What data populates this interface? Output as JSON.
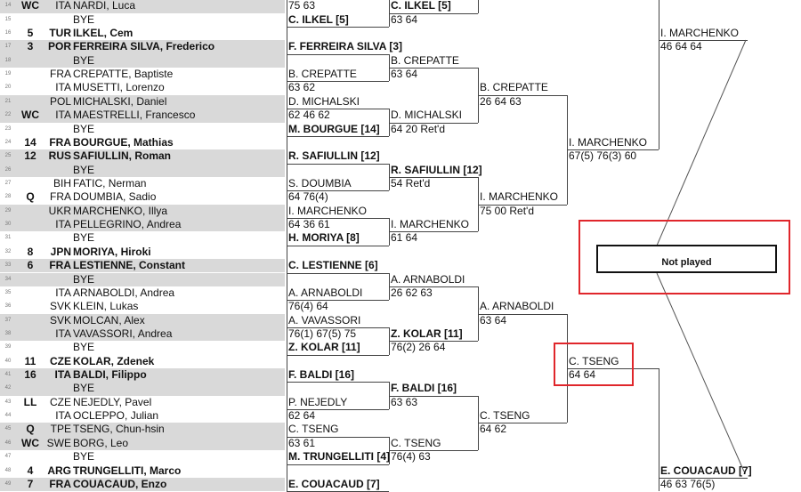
{
  "draw": [
    {
      "no": "14",
      "seed": "WC",
      "country": "ITA",
      "name": "NARDI, Luca",
      "bold": false
    },
    {
      "no": "15",
      "seed": "",
      "country": "",
      "name": "BYE",
      "bold": false
    },
    {
      "no": "16",
      "seed": "5",
      "country": "TUR",
      "name": "ILKEL, Cem",
      "bold": true
    },
    {
      "no": "17",
      "seed": "3",
      "country": "POR",
      "name": "FERREIRA SILVA, Frederico",
      "bold": true
    },
    {
      "no": "18",
      "seed": "",
      "country": "",
      "name": "BYE",
      "bold": false
    },
    {
      "no": "19",
      "seed": "",
      "country": "FRA",
      "name": "CREPATTE, Baptiste",
      "bold": false
    },
    {
      "no": "20",
      "seed": "",
      "country": "ITA",
      "name": "MUSETTI, Lorenzo",
      "bold": false
    },
    {
      "no": "21",
      "seed": "",
      "country": "POL",
      "name": "MICHALSKI, Daniel",
      "bold": false
    },
    {
      "no": "22",
      "seed": "WC",
      "country": "ITA",
      "name": "MAESTRELLI, Francesco",
      "bold": false
    },
    {
      "no": "23",
      "seed": "",
      "country": "",
      "name": "BYE",
      "bold": false
    },
    {
      "no": "24",
      "seed": "14",
      "country": "FRA",
      "name": "BOURGUE, Mathias",
      "bold": true
    },
    {
      "no": "25",
      "seed": "12",
      "country": "RUS",
      "name": "SAFIULLIN, Roman",
      "bold": true
    },
    {
      "no": "26",
      "seed": "",
      "country": "",
      "name": "BYE",
      "bold": false
    },
    {
      "no": "27",
      "seed": "",
      "country": "BIH",
      "name": "FATIC, Nerman",
      "bold": false
    },
    {
      "no": "28",
      "seed": "Q",
      "country": "FRA",
      "name": "DOUMBIA, Sadio",
      "bold": false
    },
    {
      "no": "29",
      "seed": "",
      "country": "UKR",
      "name": "MARCHENKO, Illya",
      "bold": false
    },
    {
      "no": "30",
      "seed": "",
      "country": "ITA",
      "name": "PELLEGRINO, Andrea",
      "bold": false
    },
    {
      "no": "31",
      "seed": "",
      "country": "",
      "name": "BYE",
      "bold": false
    },
    {
      "no": "32",
      "seed": "8",
      "country": "JPN",
      "name": "MORIYA, Hiroki",
      "bold": true
    },
    {
      "no": "33",
      "seed": "6",
      "country": "FRA",
      "name": "LESTIENNE, Constant",
      "bold": true
    },
    {
      "no": "34",
      "seed": "",
      "country": "",
      "name": "BYE",
      "bold": false
    },
    {
      "no": "35",
      "seed": "",
      "country": "ITA",
      "name": "ARNABOLDI, Andrea",
      "bold": false
    },
    {
      "no": "36",
      "seed": "",
      "country": "SVK",
      "name": "KLEIN, Lukas",
      "bold": false
    },
    {
      "no": "37",
      "seed": "",
      "country": "SVK",
      "name": "MOLCAN, Alex",
      "bold": false
    },
    {
      "no": "38",
      "seed": "",
      "country": "ITA",
      "name": "VAVASSORI, Andrea",
      "bold": false
    },
    {
      "no": "39",
      "seed": "",
      "country": "",
      "name": "BYE",
      "bold": false
    },
    {
      "no": "40",
      "seed": "11",
      "country": "CZE",
      "name": "KOLAR, Zdenek",
      "bold": true
    },
    {
      "no": "41",
      "seed": "16",
      "country": "ITA",
      "name": "BALDI, Filippo",
      "bold": true
    },
    {
      "no": "42",
      "seed": "",
      "country": "",
      "name": "BYE",
      "bold": false
    },
    {
      "no": "43",
      "seed": "LL",
      "country": "CZE",
      "name": "NEJEDLY, Pavel",
      "bold": false
    },
    {
      "no": "44",
      "seed": "",
      "country": "ITA",
      "name": "OCLEPPO, Julian",
      "bold": false
    },
    {
      "no": "45",
      "seed": "Q",
      "country": "TPE",
      "name": "TSENG, Chun-hsin",
      "bold": false
    },
    {
      "no": "46",
      "seed": "WC",
      "country": "SWE",
      "name": "BORG, Leo",
      "bold": false
    },
    {
      "no": "47",
      "seed": "",
      "country": "",
      "name": "BYE",
      "bold": false
    },
    {
      "no": "48",
      "seed": "4",
      "country": "ARG",
      "name": "TRUNGELLITI, Marco",
      "bold": true
    },
    {
      "no": "49",
      "seed": "7",
      "country": "FRA",
      "name": "COUACAUD, Enzo",
      "bold": true
    }
  ],
  "rounds": [
    {
      "results": [
        {
          "winner": "",
          "score": "75 63",
          "bold": false
        },
        {
          "winner": "C. ILKEL [5]",
          "score": "",
          "bold": true
        },
        {
          "winner": "F. FERREIRA SILVA [3]",
          "score": "",
          "bold": true
        },
        {
          "winner": "B. CREPATTE",
          "score": "63 62",
          "bold": false
        },
        {
          "winner": "D. MICHALSKI",
          "score": "62 46 62",
          "bold": false
        },
        {
          "winner": "M. BOURGUE [14]",
          "score": "",
          "bold": true
        },
        {
          "winner": "R. SAFIULLIN [12]",
          "score": "",
          "bold": true
        },
        {
          "winner": "S. DOUMBIA",
          "score": "64 76(4)",
          "bold": false
        },
        {
          "winner": "I. MARCHENKO",
          "score": "64 36 61",
          "bold": false
        },
        {
          "winner": "H. MORIYA [8]",
          "score": "",
          "bold": true
        },
        {
          "winner": "C. LESTIENNE [6]",
          "score": "",
          "bold": true
        },
        {
          "winner": "A. ARNABOLDI",
          "score": "76(4) 64",
          "bold": false
        },
        {
          "winner": "A. VAVASSORI",
          "score": "76(1) 67(5) 75",
          "bold": false
        },
        {
          "winner": "Z. KOLAR [11]",
          "score": "",
          "bold": true
        },
        {
          "winner": "F. BALDI [16]",
          "score": "",
          "bold": true
        },
        {
          "winner": "P. NEJEDLY",
          "score": "62 64",
          "bold": false
        },
        {
          "winner": "C. TSENG",
          "score": "63 61",
          "bold": false
        },
        {
          "winner": "M. TRUNGELLITI [4]",
          "score": "",
          "bold": true
        },
        {
          "winner": "E. COUACAUD [7]",
          "score": "",
          "bold": true
        }
      ]
    },
    {
      "results": [
        {
          "winner": "C. ILKEL [5]",
          "score": "63 64",
          "bold": true
        },
        {
          "winner": "B. CREPATTE",
          "score": "63 64",
          "bold": false
        },
        {
          "winner": "D. MICHALSKI",
          "score": "64 20 Ret'd",
          "bold": false
        },
        {
          "winner": "R. SAFIULLIN [12]",
          "score": "54 Ret'd",
          "bold": true
        },
        {
          "winner": "I. MARCHENKO",
          "score": "61 64",
          "bold": false
        },
        {
          "winner": "A. ARNABOLDI",
          "score": "26 62 63",
          "bold": false
        },
        {
          "winner": "Z. KOLAR [11]",
          "score": "76(2) 26 64",
          "bold": true
        },
        {
          "winner": "F. BALDI [16]",
          "score": "63 63",
          "bold": true
        },
        {
          "winner": "C. TSENG",
          "score": "76(4) 63",
          "bold": false
        }
      ]
    },
    {
      "results": [
        {
          "winner": "B. CREPATTE",
          "score": "26 64 63",
          "bold": false
        },
        {
          "winner": "I. MARCHENKO",
          "score": "75 00 Ret'd",
          "bold": false
        },
        {
          "winner": "A. ARNABOLDI",
          "score": "63 64",
          "bold": false
        },
        {
          "winner": "C. TSENG",
          "score": "64 62",
          "bold": false
        }
      ]
    },
    {
      "results": [
        {
          "winner": "I. MARCHENKO",
          "score": "67(5) 76(3) 60",
          "bold": false
        },
        {
          "winner": "C. TSENG",
          "score": "64 64",
          "bold": false
        }
      ]
    },
    {
      "results": [
        {
          "winner": "I. MARCHENKO",
          "score": "46 64 64",
          "bold": false
        },
        {
          "winner": "E. COUACAUD [7]",
          "score": "46 63 76(5)",
          "bold": true
        }
      ]
    }
  ],
  "not_played": {
    "label": "Not played"
  },
  "colors": {
    "highlight": "#e0262b",
    "shade": "#d9d9d9",
    "line": "#444444"
  }
}
